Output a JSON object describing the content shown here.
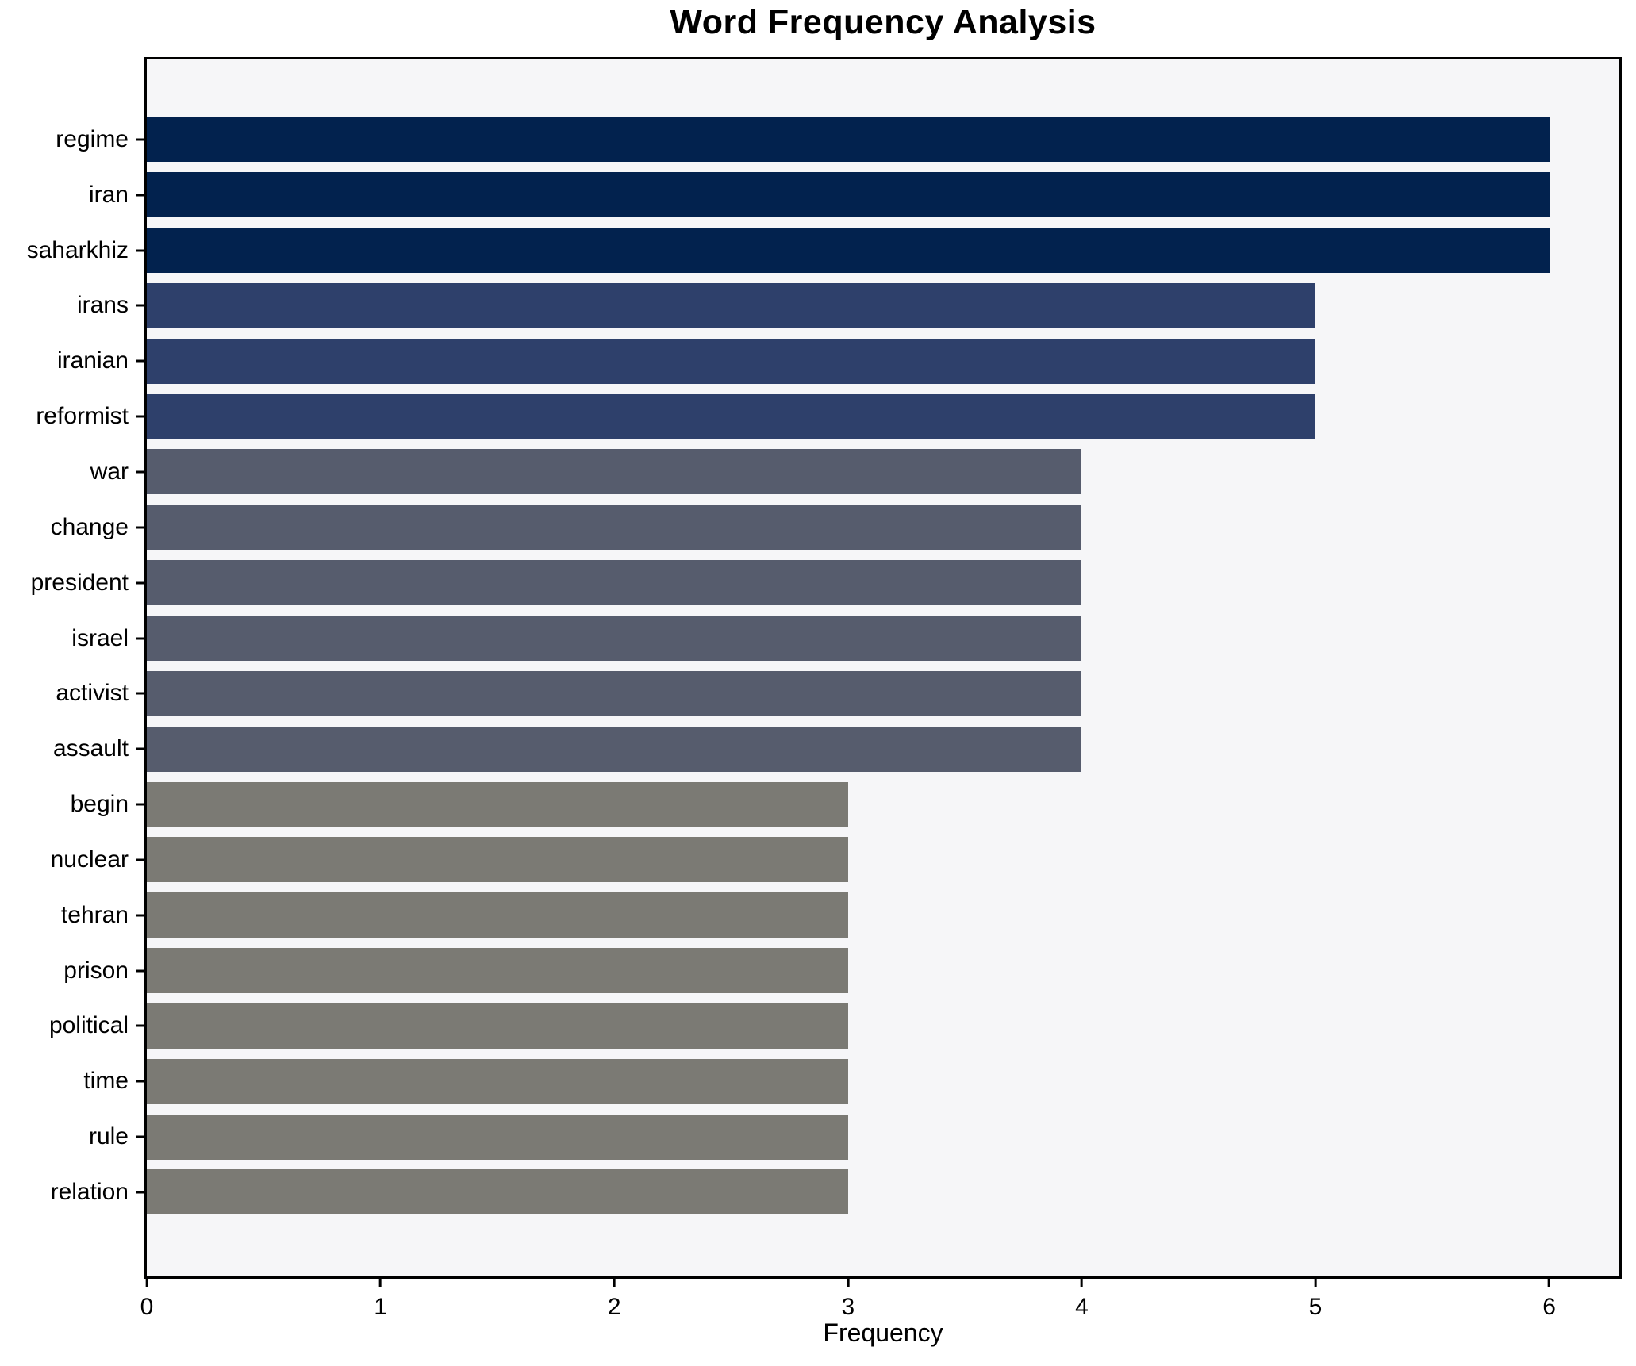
{
  "chart_data": {
    "type": "bar",
    "orientation": "horizontal",
    "title": "Word Frequency Analysis",
    "xlabel": "Frequency",
    "ylabel": "",
    "grid": false,
    "legend": false,
    "xlim": [
      0,
      6.3
    ],
    "xticks": [
      0,
      1,
      2,
      3,
      4,
      5,
      6
    ],
    "categories": [
      "regime",
      "iran",
      "saharkhiz",
      "irans",
      "iranian",
      "reformist",
      "war",
      "change",
      "president",
      "israel",
      "activist",
      "assault",
      "begin",
      "nuclear",
      "tehran",
      "prison",
      "political",
      "time",
      "rule",
      "relation"
    ],
    "values": [
      6,
      6,
      6,
      5,
      5,
      5,
      4,
      4,
      4,
      4,
      4,
      4,
      3,
      3,
      3,
      3,
      3,
      3,
      3,
      3
    ],
    "bar_colors": [
      "#02224e",
      "#02224e",
      "#02224e",
      "#2e406b",
      "#2e406b",
      "#2e406b",
      "#565c6d",
      "#565c6d",
      "#565c6d",
      "#565c6d",
      "#565c6d",
      "#565c6d",
      "#7b7a74",
      "#7b7a74",
      "#7b7a74",
      "#7b7a74",
      "#7b7a74",
      "#7b7a74",
      "#7b7a74",
      "#7b7a74"
    ],
    "colors": {
      "value_6": "#02224e",
      "value_5": "#2e406b",
      "value_4": "#565c6d",
      "value_3": "#7b7a74",
      "plot_background": "#f6f6f8",
      "figure_background": "#ffffff",
      "spine": "#000000"
    }
  }
}
